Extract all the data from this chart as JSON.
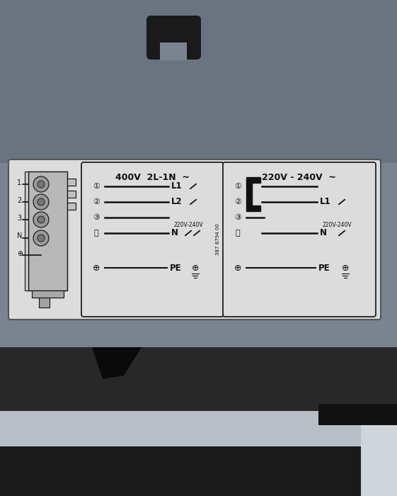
{
  "bg_color": "#7a8490",
  "label_bg": "#dcdcdc",
  "label_border": "#333333",
  "text_color": "#111111",
  "part_number": "387 8794 00",
  "box400_title": "400V  2L-1N  ~",
  "box220_title": "220V - 240V  ~",
  "top_tab_color": "#1a1a1a",
  "bottom_tab_color": "#111111",
  "terminal_bg": "#cccccc",
  "font_size_title": 9,
  "font_size_body": 7.5,
  "font_size_small": 6,
  "font_size_num": 7
}
